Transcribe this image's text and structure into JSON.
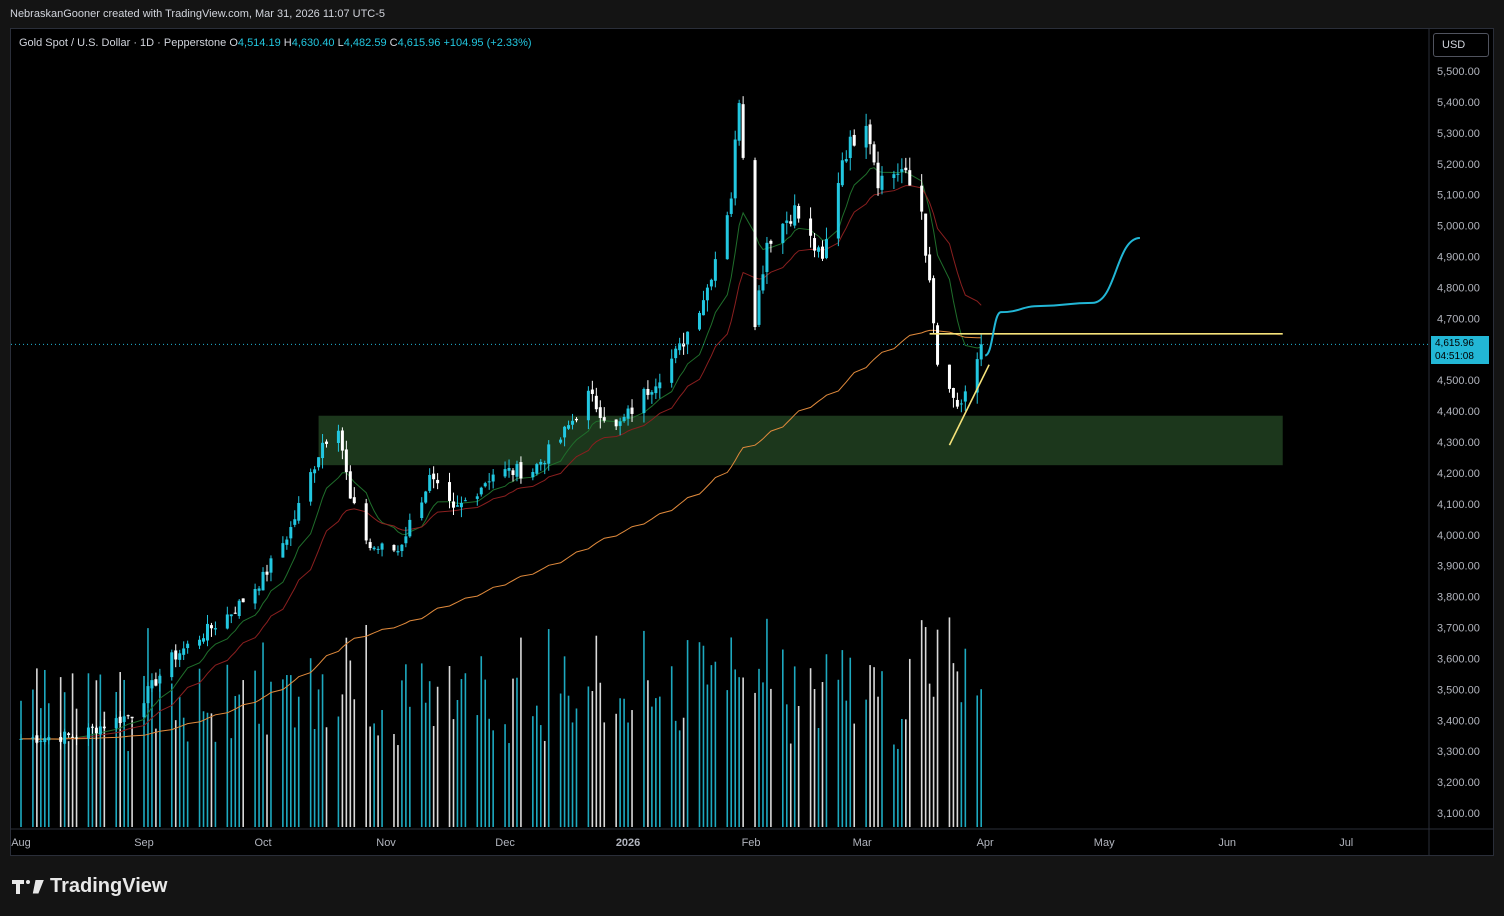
{
  "credit": "NebraskanGooner created with TradingView.com, Mar 31, 2026 11:07 UTC-5",
  "legend": {
    "symbol": "Gold Spot / U.S. Dollar · 1D · Pepperstone",
    "open_label": "O",
    "open": "4,514.19",
    "high_label": "H",
    "high": "4,630.40",
    "low_label": "L",
    "low": "4,482.59",
    "close_label": "C",
    "close": "4,615.96",
    "change": "+104.95 (+2.33%)"
  },
  "currency": "USD",
  "price_tag": {
    "price": "4,615.96",
    "countdown": "04:51:08"
  },
  "brand": "TradingView",
  "colors": {
    "up": "#22c7e0",
    "down": "#ffffff",
    "zone": "#1e3a1e",
    "level": "#f5e27a",
    "ema_fast": "#1f6e2b",
    "ema_mid": "#8a1f1f",
    "ma_slow": "#e08a3c",
    "projection": "#22b7d6"
  },
  "chart_data": {
    "type": "candlestick",
    "title": "Gold Spot / U.S. Dollar · 1D · Pepperstone",
    "ylim": [
      3050,
      5600
    ],
    "y_ticks": [
      "5,500.00",
      "5,400.00",
      "5,300.00",
      "5,200.00",
      "5,100.00",
      "5,000.00",
      "4,900.00",
      "4,800.00",
      "4,700.00",
      "4,600.00",
      "4,500.00",
      "4,400.00",
      "4,300.00",
      "4,200.00",
      "4,100.00",
      "4,000.00",
      "3,900.00",
      "3,800.00",
      "3,700.00",
      "3,600.00",
      "3,500.00",
      "3,400.00",
      "3,300.00",
      "3,200.00",
      "3,100.00"
    ],
    "x_ticks": [
      "Aug",
      "Sep",
      "Oct",
      "Nov",
      "Dec",
      "2026",
      "Feb",
      "Mar",
      "Apr",
      "May",
      "Jun",
      "Jul"
    ],
    "last_price": 4615.96,
    "price_path": [
      [
        "2025-08-01",
        3340
      ],
      [
        "2025-08-15",
        3350
      ],
      [
        "2025-08-29",
        3420
      ],
      [
        "2025-09-08",
        3600
      ],
      [
        "2025-09-16",
        3680
      ],
      [
        "2025-09-24",
        3760
      ],
      [
        "2025-10-01",
        3860
      ],
      [
        "2025-10-08",
        4020
      ],
      [
        "2025-10-16",
        4300
      ],
      [
        "2025-10-20",
        4360
      ],
      [
        "2025-10-23",
        4110
      ],
      [
        "2025-10-28",
        3960
      ],
      [
        "2025-11-04",
        3950
      ],
      [
        "2025-11-12",
        4180
      ],
      [
        "2025-11-18",
        4070
      ],
      [
        "2025-11-28",
        4200
      ],
      [
        "2025-12-08",
        4210
      ],
      [
        "2025-12-15",
        4310
      ],
      [
        "2025-12-22",
        4450
      ],
      [
        "2025-12-29",
        4340
      ],
      [
        "2026-01-06",
        4470
      ],
      [
        "2026-01-14",
        4600
      ],
      [
        "2026-01-21",
        4800
      ],
      [
        "2026-01-27",
        5100
      ],
      [
        "2026-01-29",
        5420
      ],
      [
        "2026-02-02",
        4700
      ],
      [
        "2026-02-05",
        4950
      ],
      [
        "2026-02-12",
        5050
      ],
      [
        "2026-02-19",
        4880
      ],
      [
        "2026-02-24",
        5220
      ],
      [
        "2026-03-02",
        5350
      ],
      [
        "2026-03-05",
        5150
      ],
      [
        "2026-03-11",
        5180
      ],
      [
        "2026-03-16",
        5050
      ],
      [
        "2026-03-18",
        4800
      ],
      [
        "2026-03-20",
        4550
      ],
      [
        "2026-03-23",
        4450
      ],
      [
        "2026-03-26",
        4400
      ],
      [
        "2026-03-31",
        4615.96
      ]
    ],
    "support_zone": {
      "from": 4225,
      "to": 4385,
      "start": "2025-10-15",
      "end": "2026-06-15"
    },
    "resistance_level": {
      "price": 4650,
      "start": "2026-03-18",
      "end": "2026-06-15"
    },
    "trendline": {
      "start": [
        "2026-03-23",
        4290
      ],
      "end": [
        "2026-04-02",
        4550
      ]
    },
    "projection_path": [
      [
        "2026-04-01",
        4580
      ],
      [
        "2026-04-05",
        4720
      ],
      [
        "2026-04-15",
        4740
      ],
      [
        "2026-04-28",
        4750
      ],
      [
        "2026-05-10",
        4960
      ]
    ]
  }
}
